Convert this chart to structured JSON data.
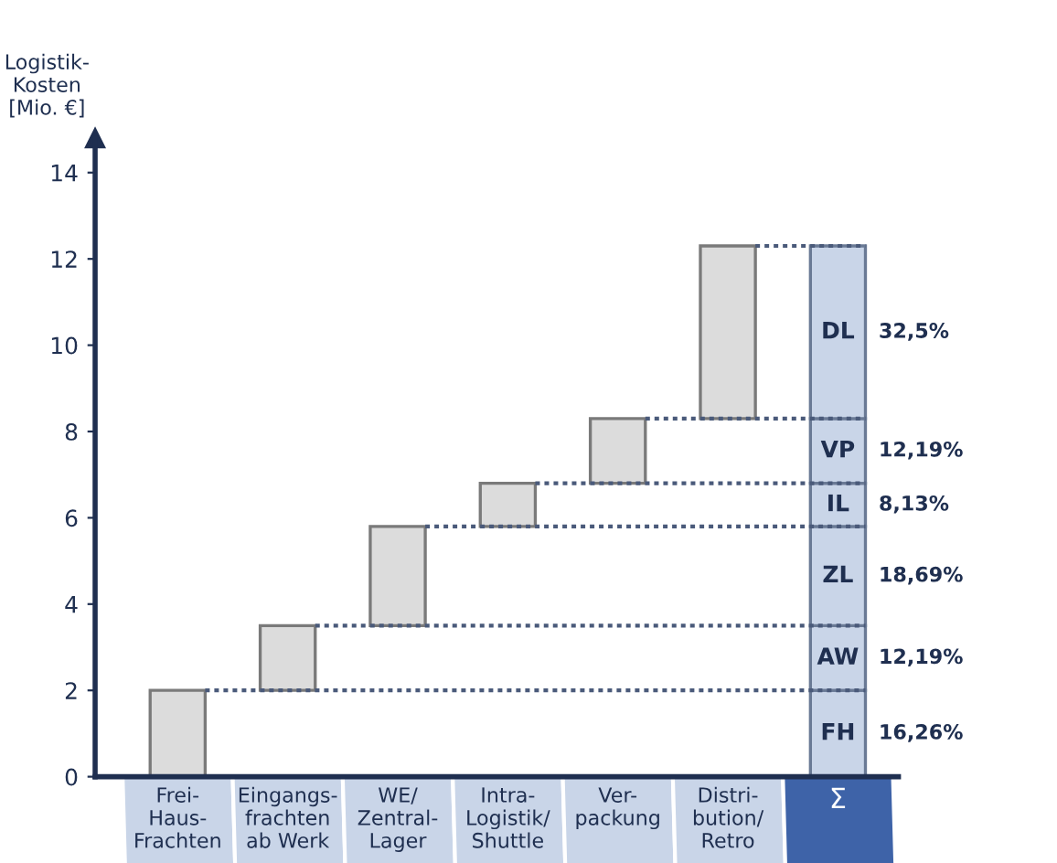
{
  "chart_data": {
    "type": "bar",
    "ylabel": "Logistik-\nKosten\n[Mio. €]",
    "categories": [
      "Frei-\nHaus-\nFrachten",
      "Eingangs-\nfrachten\nab Werk",
      "WE/\nZentral-\nLager",
      "Intra-\nLogistik/\nShuttle",
      "Ver-\npackung",
      "Distri-\nbution/\nRetro",
      "Σ"
    ],
    "stacked": true,
    "series": [
      {
        "color": "#dcdcdc",
        "values": [
          2,
          1.5,
          2.3,
          1,
          1.5,
          4,
          null
        ],
        "base": [
          0,
          2,
          3.5,
          5.8,
          6.8,
          8.3,
          null
        ]
      },
      {
        "name": "FH",
        "color": "#c9d5e8",
        "values": [
          null,
          null,
          null,
          null,
          null,
          null,
          2
        ]
      },
      {
        "name": "AW",
        "color": "#c9d5e8",
        "values": [
          null,
          null,
          null,
          null,
          null,
          null,
          1.5
        ]
      },
      {
        "name": "ZL",
        "color": "#c9d5e8",
        "values": [
          null,
          null,
          null,
          null,
          null,
          null,
          2.3
        ]
      },
      {
        "name": "IL",
        "color": "#c9d5e8",
        "values": [
          null,
          null,
          null,
          null,
          null,
          null,
          1
        ]
      },
      {
        "name": "VP",
        "color": "#c9d5e8",
        "values": [
          null,
          null,
          null,
          null,
          null,
          null,
          1.5
        ]
      },
      {
        "name": "DL",
        "color": "#c9d5e8",
        "values": [
          null,
          null,
          null,
          null,
          null,
          null,
          4
        ]
      }
    ],
    "annotations": [
      "16,26%",
      "12,19%",
      "18,69%",
      "8,13%",
      "12,19%",
      "32,5%"
    ],
    "ref_lines": [
      {
        "axis": "y",
        "value": 2,
        "line_style": "dotted",
        "color": "#4a5a7a"
      },
      {
        "axis": "y",
        "value": 3.5,
        "line_style": "dotted",
        "color": "#4a5a7a"
      },
      {
        "axis": "y",
        "value": 5.8,
        "line_style": "dotted",
        "color": "#4a5a7a"
      },
      {
        "axis": "y",
        "value": 6.8,
        "line_style": "dotted",
        "color": "#4a5a7a"
      },
      {
        "axis": "y",
        "value": 8.3,
        "line_style": "dotted",
        "color": "#4a5a7a"
      },
      {
        "axis": "y",
        "value": 12.3,
        "line_style": "dotted",
        "color": "#4a5a7a"
      }
    ],
    "ylim": [
      0,
      14.8
    ],
    "yticks": [
      0,
      2,
      4,
      6,
      8,
      10,
      12,
      14
    ],
    "grid": false,
    "legend": false
  }
}
